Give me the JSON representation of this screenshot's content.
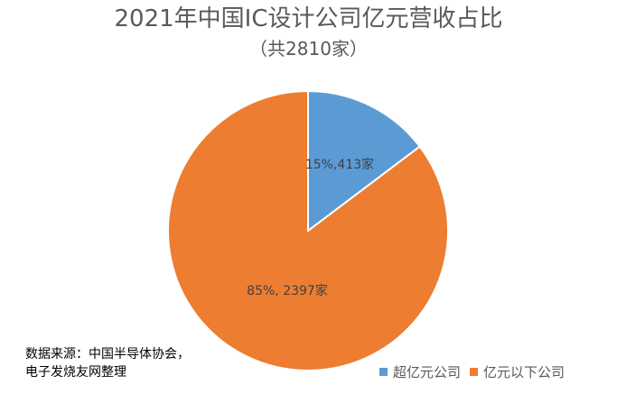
{
  "chart_data": {
    "type": "pie",
    "title": "2021年中国IC设计公司亿元营收占比",
    "subtitle": "（共2810家）",
    "slices": [
      {
        "name": "超亿元公司",
        "value": 413,
        "percent": 15,
        "label": "15%,413家",
        "color": "#5B9BD5"
      },
      {
        "name": "亿元以下公司",
        "value": 2397,
        "percent": 85,
        "label": "85%, 2397家",
        "color": "#ED7D31"
      }
    ],
    "legend_position": "bottom-right"
  },
  "source_note": {
    "line1": "数据来源：中国半导体协会，",
    "line2": "电子发烧友网整理"
  }
}
